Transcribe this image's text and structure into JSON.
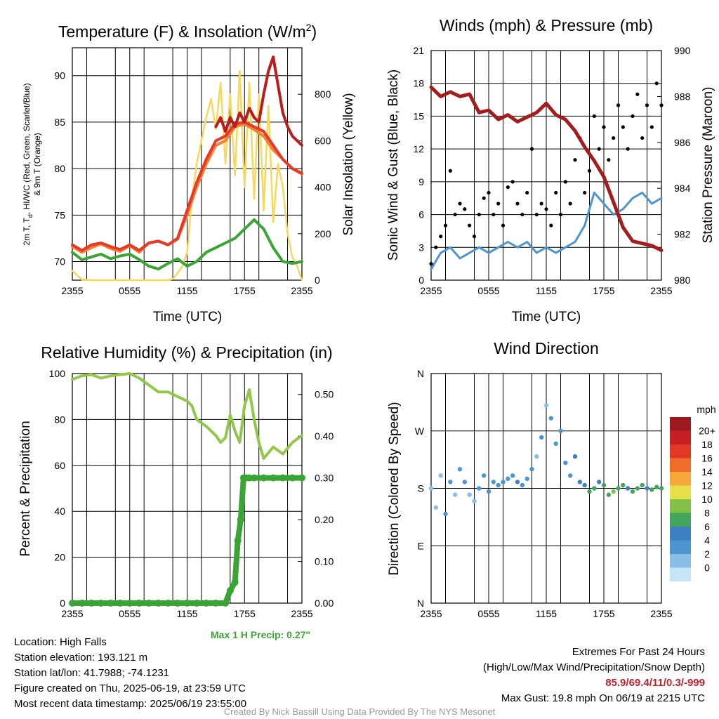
{
  "colors": {
    "temp": "#bb1c1c",
    "dewpoint": "#3aa535",
    "heat_index": "#e83828",
    "temp9m": "#f08232",
    "insolation": "#f6d85c",
    "gust": "#000000",
    "wind": "#4c95cf",
    "pressure": "#a31d1d",
    "rh": "#92c84a",
    "precip": "#3aa535"
  },
  "chart_data": [
    {
      "id": "temp",
      "type": "line",
      "title": "Temperature (F) & Insolation (W/m",
      "title_sup": "2",
      "title_close": ")",
      "xlabel": "Time (UTC)",
      "ylabel_left_1": "2m T, T",
      "ylabel_left_sub": "d",
      "ylabel_left_2": ", HI/WC (Red, Green, Scarlet/Blue)",
      "ylabel_left_3": "& 9m T (Orange)",
      "ylabel_right": "Solar Insolation (Yellow)",
      "xticks": [
        "2355",
        "0555",
        "1155",
        "1755",
        "2355"
      ],
      "xlim": [
        0,
        24
      ],
      "ylim": [
        68,
        93
      ],
      "yticks": [
        70,
        75,
        80,
        85,
        90
      ],
      "y2lim": [
        0,
        1000
      ],
      "y2ticks": [
        0,
        200,
        400,
        600,
        800
      ],
      "series": [
        {
          "key": "temp9m",
          "x": [
            0,
            1,
            2,
            3,
            4,
            5,
            6,
            7,
            8,
            9,
            10,
            11,
            12,
            13,
            14,
            15,
            16,
            17,
            18,
            19,
            20,
            21,
            22,
            23,
            24
          ],
          "y": [
            71.6,
            71.0,
            71.5,
            71.9,
            71.4,
            71.1,
            71.7,
            71.0,
            72.0,
            72.2,
            71.8,
            72.4,
            75.0,
            78.0,
            80.5,
            82.5,
            83.0,
            84.5,
            84.8,
            84.2,
            83.5,
            82.0,
            81.0,
            80.0,
            79.4
          ]
        },
        {
          "key": "temp",
          "x": [
            0,
            1,
            2,
            3,
            4,
            5,
            6,
            7,
            8,
            9,
            10,
            11,
            12,
            13,
            14,
            15,
            16,
            17,
            18,
            19,
            20,
            21,
            22,
            23,
            24
          ],
          "y": [
            71.8,
            71.2,
            71.8,
            72.0,
            71.6,
            71.3,
            71.8,
            71.2,
            72.0,
            72.2,
            71.8,
            72.5,
            75.5,
            78.5,
            81.0,
            83.0,
            83.5,
            84.8,
            85.0,
            84.5,
            84.0,
            82.5,
            81.0,
            80.0,
            79.5
          ]
        },
        {
          "key": "heat_index",
          "x": [
            15,
            15.5,
            16,
            16.5,
            17,
            17.5,
            18,
            18.5,
            19,
            19.5,
            20,
            20.5,
            21,
            21.5,
            22,
            22.5,
            23,
            23.5,
            24
          ],
          "y": [
            84.5,
            85.5,
            84.0,
            85.5,
            84.5,
            86.0,
            85.0,
            86.5,
            85.5,
            85.0,
            88.0,
            90.5,
            92.0,
            89.0,
            86.0,
            84.5,
            83.5,
            83.0,
            82.5
          ]
        },
        {
          "key": "dewpoint",
          "x": [
            0,
            1,
            2,
            3,
            4,
            5,
            6,
            7,
            8,
            9,
            10,
            11,
            12,
            13,
            14,
            15,
            16,
            17,
            18,
            19,
            20,
            21,
            22,
            23,
            24
          ],
          "y": [
            71.0,
            70.2,
            70.5,
            70.8,
            70.3,
            70.6,
            70.8,
            70.2,
            69.5,
            69.2,
            69.8,
            70.3,
            69.5,
            70.0,
            71.0,
            71.5,
            72.0,
            72.5,
            73.5,
            74.5,
            73.5,
            71.5,
            70.0,
            69.8,
            70.0
          ]
        },
        {
          "key": "insolation",
          "axis": "right",
          "x": [
            0,
            1,
            2,
            3,
            4,
            5,
            6,
            7,
            8,
            9,
            10,
            10.5,
            11,
            11.5,
            12,
            12.5,
            13,
            13.5,
            14,
            14.5,
            15,
            15.5,
            16,
            16.5,
            17,
            17.5,
            18,
            18.5,
            19,
            19.5,
            20,
            20.5,
            21,
            21.5,
            22,
            22.5,
            23,
            23.5,
            24
          ],
          "y": [
            40,
            2,
            0,
            0,
            0,
            0,
            0,
            0,
            0,
            0,
            0,
            5,
            30,
            60,
            120,
            350,
            500,
            600,
            700,
            780,
            650,
            850,
            500,
            800,
            450,
            900,
            400,
            850,
            350,
            800,
            300,
            750,
            250,
            500,
            400,
            200,
            100,
            60,
            0
          ]
        }
      ]
    },
    {
      "id": "wind",
      "type": "scatter",
      "title": "Winds (mph) & Pressure (mb)",
      "xlabel": "Time (UTC)",
      "ylabel": "Sonic Wind & Gust (Blue, Black)",
      "ylabel_right": "Station Pressure (Maroon)",
      "xticks": [
        "2355",
        "0555",
        "1155",
        "1755",
        "2355"
      ],
      "xlim": [
        0,
        24
      ],
      "ylim": [
        0,
        21
      ],
      "yticks": [
        0,
        3,
        6,
        9,
        12,
        15,
        18,
        21
      ],
      "y2lim": [
        980,
        990
      ],
      "y2ticks": [
        980,
        982,
        984,
        986,
        988,
        990
      ],
      "series": [
        {
          "key": "wind",
          "x": [
            0,
            1,
            2,
            3,
            4,
            5,
            6,
            7,
            8,
            9,
            10,
            11,
            12,
            13,
            14,
            15,
            16,
            17,
            18,
            19,
            20,
            21,
            22,
            23,
            24
          ],
          "y": [
            1.0,
            2.5,
            3.0,
            2.0,
            2.5,
            3.0,
            2.5,
            3.0,
            3.5,
            3.0,
            3.5,
            2.5,
            3.0,
            2.5,
            3.0,
            3.5,
            5.0,
            8.0,
            7.0,
            6.0,
            6.5,
            7.5,
            8.0,
            7.0,
            7.5
          ]
        },
        {
          "key": "pressure",
          "axis": "right",
          "x": [
            0,
            1,
            2,
            3,
            4,
            5,
            6,
            7,
            8,
            9,
            10,
            11,
            12,
            13,
            14,
            15,
            16,
            17,
            18,
            19,
            20,
            21,
            22,
            23,
            24
          ],
          "y": [
            988.4,
            988.0,
            988.2,
            988.0,
            988.1,
            987.3,
            987.4,
            987.0,
            987.2,
            986.9,
            987.1,
            987.3,
            987.7,
            987.2,
            987.0,
            986.5,
            985.8,
            985.2,
            984.5,
            983.4,
            982.3,
            981.7,
            981.6,
            981.5,
            981.3
          ]
        },
        {
          "key": "gust",
          "x": [
            0,
            0.5,
            1,
            1.5,
            2,
            2.5,
            3,
            3.5,
            4,
            4.5,
            5,
            5.5,
            6,
            6.5,
            7,
            7.5,
            8,
            8.5,
            9,
            9.5,
            10,
            10.5,
            11,
            11.5,
            12,
            12.5,
            13,
            13.5,
            14,
            14.5,
            15,
            15.5,
            16,
            16.5,
            17,
            17.5,
            18,
            18.5,
            19,
            19.5,
            20,
            20.5,
            21,
            21.5,
            22,
            22.5,
            23,
            23.5,
            24
          ],
          "y": [
            1.5,
            3,
            4,
            5,
            10,
            6,
            7,
            6.5,
            5,
            4,
            6,
            7.5,
            8,
            6,
            7,
            5,
            8.5,
            9,
            7,
            6,
            8,
            12,
            6,
            7,
            6.5,
            5,
            8,
            6,
            9,
            7,
            11,
            13,
            8,
            10,
            15,
            12,
            14,
            11,
            13,
            16,
            14,
            12,
            15,
            17,
            13,
            16,
            14,
            18,
            16
          ]
        }
      ]
    },
    {
      "id": "rh",
      "type": "line",
      "title": "Relative Humidity (%) & Precipitation (in)",
      "ylabel": "Percent & Precipitation",
      "xticks": [
        "2355",
        "0555",
        "1155",
        "1755",
        "2355"
      ],
      "xlim": [
        0,
        24
      ],
      "ylim": [
        0,
        100
      ],
      "yticks": [
        0,
        20,
        40,
        60,
        80,
        100
      ],
      "y2lim": [
        0,
        0.55
      ],
      "y2ticks": [
        "0.00",
        "0.10",
        "0.20",
        "0.30",
        "0.40",
        "0.50"
      ],
      "series": [
        {
          "key": "rh",
          "x": [
            0,
            1,
            2,
            3,
            4,
            5,
            6,
            7,
            8,
            9,
            10,
            11,
            12,
            12.5,
            13,
            14,
            15,
            15.5,
            16,
            16.5,
            17,
            17.5,
            18,
            18.5,
            19,
            19.5,
            20,
            21,
            22,
            23,
            24
          ],
          "y": [
            97.5,
            99.0,
            99.5,
            98.0,
            99.0,
            99.5,
            100,
            98.0,
            95.0,
            92.0,
            92.0,
            90.0,
            88.0,
            86.0,
            80.0,
            77.0,
            73.0,
            70.0,
            72.0,
            82.0,
            75.0,
            70.0,
            86.0,
            93.0,
            80.0,
            70.0,
            63.0,
            68.0,
            65.0,
            70.0,
            73.0
          ]
        },
        {
          "key": "precip",
          "axis": "right",
          "x": [
            0,
            1,
            2,
            3,
            4,
            5,
            6,
            7,
            8,
            9,
            10,
            11,
            12,
            13,
            14,
            15,
            16,
            16.5,
            17,
            17.3,
            17.6,
            17.9,
            18.2,
            18.5,
            19,
            20,
            21,
            22,
            23,
            24
          ],
          "y": [
            0,
            0,
            0,
            0,
            0,
            0,
            0,
            0,
            0,
            0,
            0,
            0,
            0,
            0,
            0,
            0,
            0,
            0.03,
            0.05,
            0.15,
            0.2,
            0.3,
            0.3,
            0.3,
            0.3,
            0.3,
            0.3,
            0.3,
            0.3,
            0.3
          ]
        }
      ]
    },
    {
      "id": "dir",
      "type": "scatter",
      "title": "Wind Direction",
      "ylabel": "Direction (Colored By Speed)",
      "xticks": [
        "2355",
        "0555",
        "1155",
        "1755",
        "2355"
      ],
      "xlim": [
        0,
        24
      ],
      "ylim": [
        0,
        360
      ],
      "yticks": [
        0,
        90,
        180,
        270,
        360
      ],
      "ytick_labels": [
        "N",
        "E",
        "S",
        "W",
        "N"
      ],
      "legend_title": "mph",
      "legend_labels": [
        "0",
        "2",
        "4",
        "6",
        "8",
        "10",
        "12",
        "14",
        "16",
        "18",
        "20+"
      ],
      "legend_colors": [
        "#c6e4f4",
        "#89bfe6",
        "#4c95cf",
        "#3f7ec0",
        "#43a55c",
        "#82c04a",
        "#e6e14b",
        "#f6a83c",
        "#ef6d2a",
        "#e03a25",
        "#c42026",
        "#9b1b1f"
      ],
      "series": [
        {
          "key": "direction",
          "x": [
            0,
            0.5,
            1,
            1.5,
            2,
            2.5,
            3,
            3.5,
            4,
            4.5,
            5,
            5.5,
            6,
            6.5,
            7,
            7.5,
            8,
            8.5,
            9,
            9.5,
            10,
            10.5,
            11,
            11.5,
            12,
            12.5,
            13,
            13.5,
            14,
            14.5,
            15,
            15.5,
            16,
            16.5,
            17,
            17.5,
            18,
            18.5,
            19,
            19.5,
            20,
            20.5,
            21,
            21.5,
            22,
            22.5,
            23,
            23.5,
            24
          ],
          "y": [
            180,
            150,
            200,
            140,
            190,
            170,
            210,
            190,
            170,
            160,
            180,
            200,
            175,
            190,
            185,
            190,
            195,
            200,
            190,
            185,
            195,
            210,
            230,
            260,
            310,
            290,
            250,
            270,
            220,
            200,
            230,
            190,
            185,
            175,
            180,
            190,
            185,
            170,
            175,
            180,
            185,
            180,
            175,
            180,
            185,
            180,
            178,
            182,
            180
          ],
          "speed": [
            1,
            1,
            2,
            3,
            3,
            2,
            4,
            3,
            2,
            2,
            3,
            4,
            4,
            3,
            4,
            3,
            4,
            4,
            5,
            4,
            3,
            3,
            2,
            3,
            2,
            3,
            4,
            3,
            4,
            3,
            5,
            6,
            6,
            8,
            7,
            6,
            8,
            7,
            9,
            7,
            8,
            6,
            7,
            8,
            7,
            6,
            7,
            8,
            7
          ]
        }
      ]
    }
  ],
  "info": {
    "location": "Location: High Falls",
    "elevation": "Station elevation: 193.121 m",
    "latlon": "Station lat/lon: 41.7988; -74.1231",
    "created": "Figure created on Thu, 2025-06-19, at 23:59 UTC",
    "recent": "Most recent data timestamp: 2025/06/19 23:55:00"
  },
  "precip_note": "Max 1 H Precip: 0.27\"",
  "extremes": {
    "title": "Extremes For Past 24 Hours",
    "subtitle": "(High/Low/Max Wind/Precipitation/Snow Depth)",
    "values": "85.9/69.4/11/0.3/-999",
    "gust": "Max Gust: 19.8 mph On 06/19 at 2215 UTC"
  },
  "credit": "Created By Nick Bassill Using Data Provided By The NYS Mesonet"
}
